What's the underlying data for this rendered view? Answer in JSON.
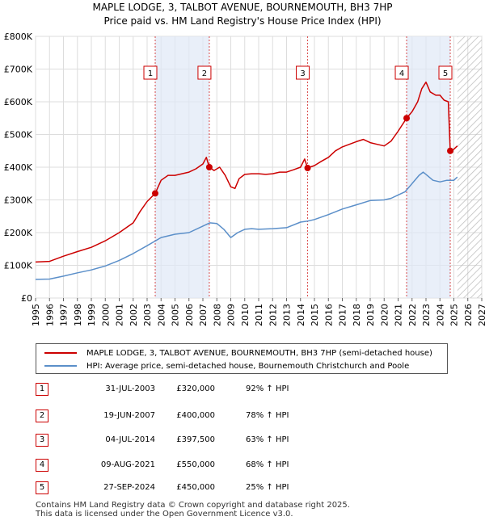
{
  "chart_data": {
    "type": "line",
    "title": "MAPLE LODGE, 3, TALBOT AVENUE, BOURNEMOUTH, BH3 7HP",
    "subtitle": "Price paid vs. HM Land Registry's House Price Index (HPI)",
    "xlabel": "",
    "ylabel": "",
    "xlim": [
      1995,
      2027
    ],
    "ylim": [
      0,
      800000
    ],
    "y_ticks": [
      {
        "value": 0,
        "label": "£0"
      },
      {
        "value": 100000,
        "label": "£100K"
      },
      {
        "value": 200000,
        "label": "£200K"
      },
      {
        "value": 300000,
        "label": "£300K"
      },
      {
        "value": 400000,
        "label": "£400K"
      },
      {
        "value": 500000,
        "label": "£500K"
      },
      {
        "value": 600000,
        "label": "£600K"
      },
      {
        "value": 700000,
        "label": "£700K"
      },
      {
        "value": 800000,
        "label": "£800K"
      }
    ],
    "x_ticks": [
      "1995",
      "1996",
      "1997",
      "1998",
      "1999",
      "2000",
      "2001",
      "2002",
      "2003",
      "2004",
      "2005",
      "2006",
      "2007",
      "2008",
      "2009",
      "2010",
      "2011",
      "2012",
      "2013",
      "2014",
      "2015",
      "2016",
      "2017",
      "2018",
      "2019",
      "2020",
      "2021",
      "2022",
      "2023",
      "2024",
      "2025",
      "2026",
      "2027"
    ],
    "grid": true,
    "forecast_start": 2025.25,
    "series": [
      {
        "name": "MAPLE LODGE, 3, TALBOT AVENUE, BOURNEMOUTH, BH3 7HP (semi-detached house)",
        "color": "#cc0000",
        "x": [
          1995.0,
          1996.0,
          1997.0,
          1998.0,
          1999.0,
          2000.0,
          2001.0,
          2002.0,
          2002.5,
          2003.0,
          2003.58,
          2004.0,
          2004.5,
          2005.0,
          2005.5,
          2006.0,
          2006.5,
          2007.0,
          2007.25,
          2007.46,
          2007.8,
          2008.2,
          2008.6,
          2009.0,
          2009.3,
          2009.6,
          2010.0,
          2010.5,
          2011.0,
          2011.5,
          2012.0,
          2012.5,
          2013.0,
          2013.5,
          2014.0,
          2014.3,
          2014.51,
          2015.0,
          2015.5,
          2016.0,
          2016.5,
          2017.0,
          2017.5,
          2018.0,
          2018.5,
          2019.0,
          2019.5,
          2020.0,
          2020.5,
          2021.0,
          2021.61,
          2022.0,
          2022.4,
          2022.7,
          2023.0,
          2023.3,
          2023.7,
          2024.0,
          2024.3,
          2024.6,
          2024.74,
          2025.0,
          2025.25
        ],
        "values": [
          110000,
          112000,
          128000,
          142000,
          155000,
          175000,
          200000,
          230000,
          265000,
          295000,
          320000,
          360000,
          375000,
          375000,
          380000,
          385000,
          395000,
          410000,
          430000,
          400000,
          390000,
          400000,
          375000,
          340000,
          335000,
          365000,
          378000,
          380000,
          380000,
          378000,
          380000,
          385000,
          385000,
          392000,
          400000,
          425000,
          397500,
          405000,
          418000,
          430000,
          450000,
          462000,
          470000,
          478000,
          485000,
          475000,
          470000,
          465000,
          480000,
          510000,
          550000,
          570000,
          600000,
          640000,
          660000,
          630000,
          620000,
          620000,
          605000,
          600000,
          450000,
          455000,
          465000
        ]
      },
      {
        "name": "HPI: Average price, semi-detached house, Bournemouth Christchurch and Poole",
        "color": "#5b8fc9",
        "x": [
          1995.0,
          1996.0,
          1997.0,
          1998.0,
          1999.0,
          2000.0,
          2001.0,
          2002.0,
          2003.0,
          2004.0,
          2005.0,
          2006.0,
          2007.0,
          2007.5,
          2008.0,
          2008.5,
          2009.0,
          2009.5,
          2010.0,
          2010.5,
          2011.0,
          2012.0,
          2013.0,
          2014.0,
          2014.5,
          2015.0,
          2016.0,
          2017.0,
          2018.0,
          2019.0,
          2020.0,
          2020.5,
          2021.0,
          2021.5,
          2022.0,
          2022.5,
          2022.8,
          2023.0,
          2023.5,
          2024.0,
          2024.5,
          2025.0,
          2025.25
        ],
        "values": [
          57000,
          58000,
          67000,
          77000,
          86000,
          98000,
          115000,
          136000,
          160000,
          185000,
          195000,
          200000,
          220000,
          230000,
          228000,
          210000,
          185000,
          200000,
          210000,
          212000,
          210000,
          212000,
          215000,
          232000,
          235000,
          240000,
          255000,
          272000,
          285000,
          298000,
          300000,
          305000,
          315000,
          325000,
          350000,
          375000,
          385000,
          378000,
          360000,
          355000,
          360000,
          360000,
          370000
        ]
      }
    ],
    "sales": [
      {
        "num": "1",
        "x": 2003.58,
        "value": 320000,
        "date": "31-JUL-2003",
        "price": "£320,000",
        "hpi": "92% ↑ HPI"
      },
      {
        "num": "2",
        "x": 2007.46,
        "value": 400000,
        "date": "19-JUN-2007",
        "price": "£400,000",
        "hpi": "78% ↑ HPI"
      },
      {
        "num": "3",
        "x": 2014.51,
        "value": 397500,
        "date": "04-JUL-2014",
        "price": "£397,500",
        "hpi": "63% ↑ HPI"
      },
      {
        "num": "4",
        "x": 2021.61,
        "value": 550000,
        "date": "09-AUG-2021",
        "price": "£550,000",
        "hpi": "68% ↑ HPI"
      },
      {
        "num": "5",
        "x": 2024.74,
        "value": 450000,
        "date": "27-SEP-2024",
        "price": "£450,000",
        "hpi": "25% ↑ HPI"
      }
    ],
    "highlight_ranges": [
      [
        2003.58,
        2007.46
      ],
      [
        2021.61,
        2024.74
      ]
    ]
  },
  "footer": {
    "line1": "Contains HM Land Registry data © Crown copyright and database right 2025.",
    "line2": "This data is licensed under the Open Government Licence v3.0."
  }
}
